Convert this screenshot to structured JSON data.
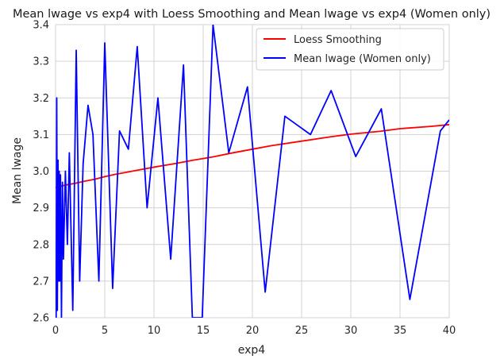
{
  "chart_data": {
    "type": "line",
    "title": "Mean lwage vs exp4 with Loess Smoothing and Mean lwage vs exp4 (Women only)",
    "xlabel": "exp4",
    "ylabel": "Mean lwage",
    "xlim": [
      0,
      40
    ],
    "ylim": [
      2.6,
      3.4
    ],
    "xticks": [
      0,
      5,
      10,
      15,
      20,
      25,
      30,
      35,
      40
    ],
    "xtick_labels": [
      "0",
      "5",
      "10",
      "15",
      "20",
      "25",
      "30",
      "35",
      "40"
    ],
    "yticks": [
      2.6,
      2.7,
      2.8,
      2.9,
      3.0,
      3.1,
      3.2,
      3.3,
      3.4
    ],
    "ytick_labels": [
      "2.6",
      "2.7",
      "2.8",
      "2.9",
      "3.0",
      "3.1",
      "3.2",
      "3.3",
      "3.4"
    ],
    "grid": true,
    "legend_position": "top-right",
    "series": [
      {
        "name": "Loess Smoothing",
        "color": "#ff0000",
        "points": [
          [
            0,
            2.955
          ],
          [
            1,
            2.962
          ],
          [
            2,
            2.967
          ],
          [
            3,
            2.973
          ],
          [
            4,
            2.978
          ],
          [
            5,
            2.985
          ],
          [
            6,
            2.991
          ],
          [
            7,
            2.996
          ],
          [
            8,
            3.001
          ],
          [
            9,
            3.006
          ],
          [
            10,
            3.011
          ],
          [
            12,
            3.02
          ],
          [
            14,
            3.03
          ],
          [
            16,
            3.039
          ],
          [
            18,
            3.05
          ],
          [
            20,
            3.06
          ],
          [
            22,
            3.07
          ],
          [
            25,
            3.082
          ],
          [
            28,
            3.094
          ],
          [
            30,
            3.101
          ],
          [
            33,
            3.109
          ],
          [
            35,
            3.116
          ],
          [
            38,
            3.122
          ],
          [
            40,
            3.127
          ]
        ]
      },
      {
        "name": "Mean lwage (Women only)",
        "color": "#0000ff",
        "points": [
          [
            0.06,
            2.6
          ],
          [
            0.12,
            3.2
          ],
          [
            0.18,
            2.62
          ],
          [
            0.25,
            3.03
          ],
          [
            0.31,
            2.7
          ],
          [
            0.37,
            3.0
          ],
          [
            0.44,
            2.7
          ],
          [
            0.5,
            2.99
          ],
          [
            0.6,
            2.6
          ],
          [
            0.7,
            2.97
          ],
          [
            0.8,
            2.76
          ],
          [
            1.0,
            3.0
          ],
          [
            1.2,
            2.8
          ],
          [
            1.4,
            3.05
          ],
          [
            1.75,
            2.62
          ],
          [
            2.1,
            3.33
          ],
          [
            2.45,
            2.7
          ],
          [
            2.8,
            3.02
          ],
          [
            3.3,
            3.18
          ],
          [
            3.8,
            3.1
          ],
          [
            4.4,
            2.7
          ],
          [
            5.0,
            3.35
          ],
          [
            5.8,
            2.68
          ],
          [
            6.5,
            3.11
          ],
          [
            7.4,
            3.06
          ],
          [
            8.3,
            3.34
          ],
          [
            9.3,
            2.9
          ],
          [
            10.4,
            3.2
          ],
          [
            11.7,
            2.76
          ],
          [
            13.0,
            3.29
          ],
          [
            13.9,
            2.6
          ],
          [
            14.9,
            2.6
          ],
          [
            16.0,
            3.4
          ],
          [
            17.6,
            3.05
          ],
          [
            19.5,
            3.23
          ],
          [
            21.3,
            2.67
          ],
          [
            23.3,
            3.15
          ],
          [
            25.9,
            3.1
          ],
          [
            28.0,
            3.22
          ],
          [
            30.5,
            3.04
          ],
          [
            33.1,
            3.17
          ],
          [
            36.0,
            2.65
          ],
          [
            39.1,
            3.11
          ],
          [
            40.0,
            3.14
          ]
        ]
      }
    ]
  }
}
